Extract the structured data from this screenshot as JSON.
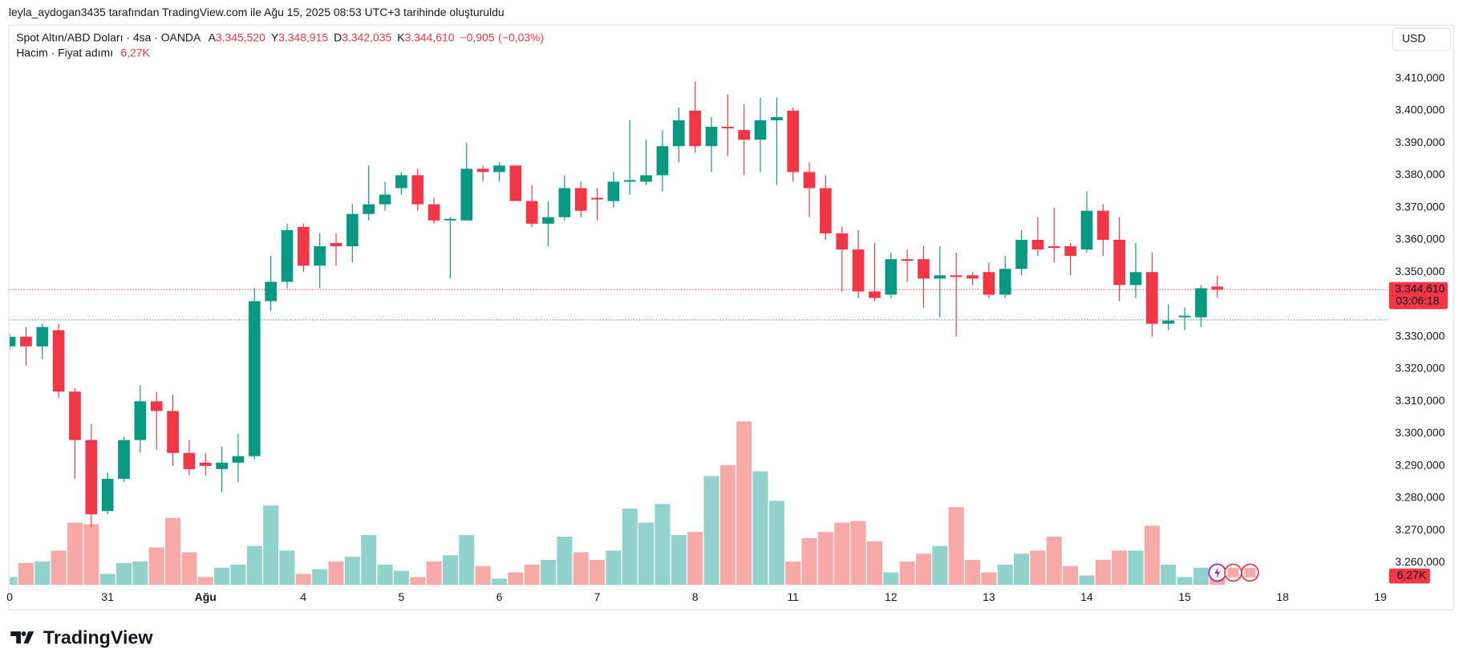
{
  "header": "leyla_aydogan3435 tarafından TradingView.com ile Ağu 15, 2025 08:53 UTC+3 tarihinde oluşturuldu",
  "brand": "TradingView",
  "currency_button": "USD",
  "chart_data": {
    "type": "candlestick",
    "legend": {
      "name": "Spot Altın/ABD Doları · 4sa · OANDA",
      "items": [
        {
          "key": "A",
          "value": 3345.52,
          "label": "3.345,520"
        },
        {
          "key": "Y",
          "value": 3348.915,
          "label": "3.348,915"
        },
        {
          "key": "D",
          "value": 3342.035,
          "label": "3.342,035"
        },
        {
          "key": "K",
          "value": 3344.61,
          "label": "3.344,610"
        }
      ],
      "change": {
        "value": -0.905,
        "label": "−0,905"
      },
      "change_pct": {
        "value": -0.03,
        "label": "(−0,03%)"
      },
      "volume_name": "Hacim · Fiyat adımı"
    },
    "up_color": "#089981",
    "down_color": "#f23645",
    "volume_up_color": "#92d2cc",
    "volume_down_color": "#f7a9a7",
    "open": [
      3327,
      3330,
      3327,
      3332,
      3313,
      3298,
      3276,
      3286,
      3298,
      3310,
      3307,
      3294,
      3291,
      3289,
      3291,
      3293,
      3341,
      3347,
      3364,
      3352,
      3359,
      3358,
      3368,
      3371,
      3376,
      3380,
      3371,
      3366,
      3366,
      3382,
      3381,
      3383,
      3372,
      3365,
      3367,
      3376,
      3373,
      3372,
      3378,
      3378,
      3380,
      3389,
      3400,
      3389,
      3395,
      3394,
      3391,
      3397,
      3400,
      3381,
      3376,
      3362,
      3357,
      3344,
      3343,
      3354,
      3354,
      3348,
      3349,
      3349,
      3350,
      3343,
      3351,
      3360,
      3358,
      3358,
      3357,
      3369,
      3360,
      3346,
      3350,
      3334,
      3336,
      3336,
      3345.52
    ],
    "high": [
      3331,
      3333,
      3334,
      3334,
      3314,
      3303,
      3288,
      3299,
      3315,
      3313,
      3312,
      3298,
      3294,
      3296,
      3300,
      3345,
      3355,
      3365,
      3365,
      3362,
      3362,
      3371,
      3383,
      3378,
      3381,
      3382,
      3373,
      3367,
      3390,
      3383,
      3384,
      3383,
      3377,
      3372,
      3380,
      3378,
      3376,
      3381,
      3397,
      3391,
      3394,
      3401,
      3409,
      3398,
      3405,
      3402,
      3404,
      3404,
      3401,
      3384,
      3380,
      3364,
      3363,
      3359,
      3356,
      3357,
      3358,
      3358,
      3356,
      3350,
      3353,
      3355,
      3363,
      3367,
      3370,
      3359,
      3375,
      3371,
      3367,
      3359,
      3356,
      3340,
      3339,
      3346,
      3348.915
    ],
    "low": [
      3326,
      3321,
      3323,
      3311,
      3286,
      3271,
      3275,
      3285,
      3294,
      3295,
      3290,
      3287,
      3287,
      3282,
      3285,
      3292,
      3338,
      3345,
      3350,
      3345,
      3352,
      3353,
      3366,
      3369,
      3374,
      3369,
      3365,
      3348,
      3366,
      3378,
      3378,
      3372,
      3364,
      3358,
      3366,
      3367,
      3366,
      3370,
      3374,
      3377,
      3375,
      3384,
      3387,
      3381,
      3386,
      3380,
      3381,
      3377,
      3378,
      3367,
      3360,
      3344,
      3342,
      3341,
      3342,
      3347,
      3339,
      3336,
      3330,
      3346,
      3342,
      3342,
      3349,
      3355,
      3353,
      3349,
      3356,
      3355,
      3341,
      3342,
      3330,
      3332,
      3332,
      3333,
      3342.035
    ],
    "close": [
      3330,
      3327,
      3333,
      3313,
      3298,
      3275,
      3286,
      3298,
      3310,
      3307,
      3294,
      3289,
      3290,
      3291,
      3293,
      3341,
      3347,
      3363,
      3352,
      3358,
      3358,
      3368,
      3371,
      3374,
      3380,
      3371,
      3366,
      3366.5,
      3382,
      3381,
      3383,
      3372,
      3365,
      3367,
      3376,
      3369,
      3372.5,
      3378,
      3378.5,
      3380,
      3389,
      3397,
      3389,
      3395,
      3394.5,
      3391,
      3397,
      3398,
      3381,
      3376,
      3362,
      3357,
      3344,
      3342,
      3354,
      3353.5,
      3348,
      3349,
      3348.5,
      3348,
      3343,
      3351,
      3360,
      3357,
      3357.5,
      3355,
      3369,
      3360,
      3346,
      3350,
      3334,
      3335,
      3336.5,
      3345,
      3344.61
    ],
    "volume": [
      5,
      14,
      15,
      22,
      40,
      39,
      7,
      14,
      15,
      24,
      43,
      21,
      5,
      11,
      13,
      25,
      51,
      22,
      7,
      10,
      15,
      18,
      32,
      13,
      9,
      5,
      15,
      19,
      32,
      12,
      4,
      8,
      13,
      16,
      31,
      21,
      16,
      22,
      49,
      40,
      52,
      32,
      34,
      70,
      77,
      105,
      73,
      54,
      15,
      30,
      34,
      40,
      41,
      28,
      8,
      15,
      20,
      25,
      50,
      16,
      8,
      13,
      20,
      22,
      31,
      12,
      6,
      16,
      22,
      22,
      38,
      13,
      5,
      11,
      6.27
    ],
    "volume_tag": {
      "value": 6.27,
      "label": "6,27K"
    },
    "volume_ylim": [
      0,
      300
    ],
    "price_tag": {
      "value": 3344.61,
      "label": "3.344,610",
      "countdown": "03:06:18"
    },
    "lines": [
      {
        "value": 3344.61,
        "color": "#f23645"
      },
      {
        "value": 3335.2,
        "color": "#089981"
      }
    ],
    "xlim": [
      0,
      84.46
    ],
    "xticks": [
      {
        "value": 0,
        "label": "0"
      },
      {
        "value": 6,
        "label": "31"
      },
      {
        "value": 12,
        "label": "Ağu"
      },
      {
        "value": 18,
        "label": "4"
      },
      {
        "value": 24,
        "label": "5"
      },
      {
        "value": 30,
        "label": "6"
      },
      {
        "value": 36,
        "label": "7"
      },
      {
        "value": 42,
        "label": "8"
      },
      {
        "value": 48,
        "label": "11"
      },
      {
        "value": 54,
        "label": "12"
      },
      {
        "value": 60,
        "label": "13"
      },
      {
        "value": 66,
        "label": "14"
      },
      {
        "value": 72,
        "label": "15"
      },
      {
        "value": 78,
        "label": "18"
      },
      {
        "value": 84,
        "label": "19"
      }
    ],
    "ylim": [
      3253.18,
      3426.17
    ],
    "yticks": [
      {
        "value": 3260,
        "label": "3.260,000"
      },
      {
        "value": 3270,
        "label": "3.270,000"
      },
      {
        "value": 3280,
        "label": "3.280,000"
      },
      {
        "value": 3290,
        "label": "3.290,000"
      },
      {
        "value": 3300,
        "label": "3.300,000"
      },
      {
        "value": 3310,
        "label": "3.310,000"
      },
      {
        "value": 3320,
        "label": "3.320,000"
      },
      {
        "value": 3330,
        "label": "3.330,000"
      },
      {
        "value": 3340,
        "label": "3.340,000"
      },
      {
        "value": 3350,
        "label": "3.350,000"
      },
      {
        "value": 3360,
        "label": "3.360,000"
      },
      {
        "value": 3370,
        "label": "3.370,000"
      },
      {
        "value": 3380,
        "label": "3.380,000"
      },
      {
        "value": 3390,
        "label": "3.390,000"
      },
      {
        "value": 3400,
        "label": "3.400,000"
      },
      {
        "value": 3410,
        "label": "3.410,000"
      }
    ]
  }
}
